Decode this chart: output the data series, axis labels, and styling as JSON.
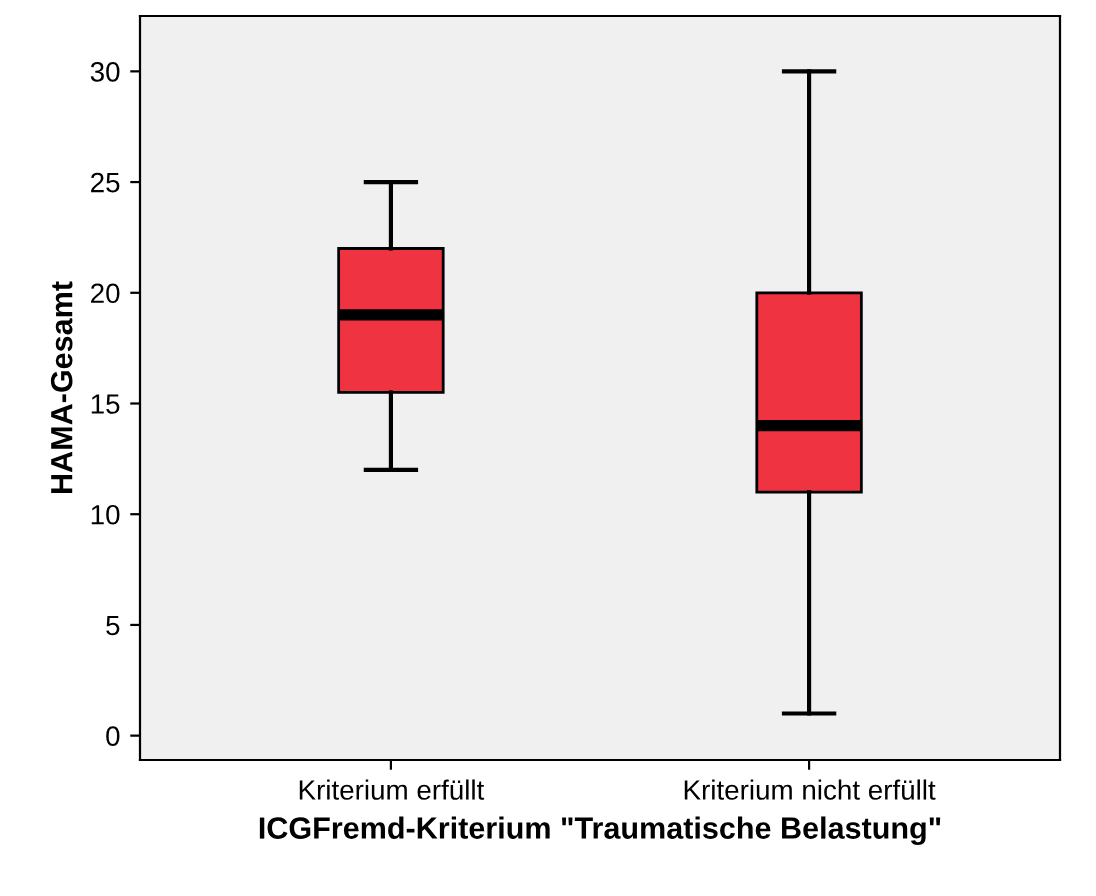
{
  "chart_data": {
    "type": "box",
    "xlabel": "ICGFremd-Kriterium \"Traumatische Belastung\"",
    "ylabel": "HAMA-Gesamt",
    "categories": [
      "Kriterium erfüllt",
      "Kriterium nicht erfüllt"
    ],
    "boxes": [
      {
        "low": 12,
        "q1": 15.5,
        "median": 19,
        "q3": 22,
        "high": 25
      },
      {
        "low": 1,
        "q1": 11,
        "median": 14,
        "q3": 20,
        "high": 30
      }
    ],
    "color": "#ef3340",
    "ylim": [
      -1.1,
      32.5
    ],
    "yticks": [
      0,
      5,
      10,
      15,
      20,
      25,
      30
    ],
    "grid": false
  }
}
